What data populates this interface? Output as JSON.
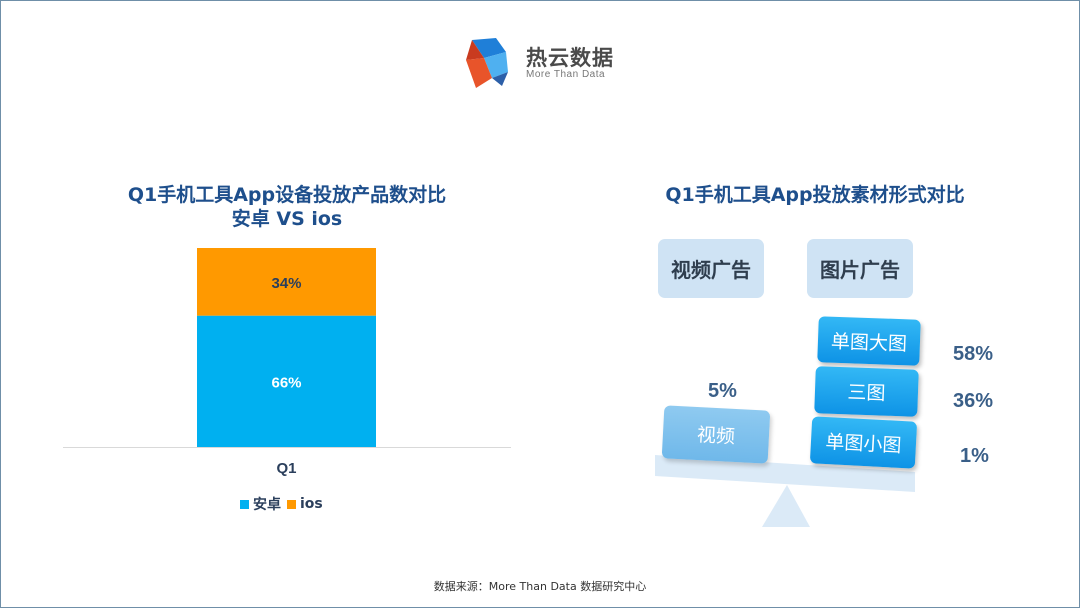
{
  "logo": {
    "name": "热云数据",
    "tagline": "More Than Data"
  },
  "left_title_line1": "Q1手机工具App设备投放产品数对比",
  "left_title_line2": "安卓 VS ios",
  "right_title": "Q1手机工具App投放素材形式对比",
  "chart_data": [
    {
      "type": "bar",
      "stacked": true,
      "title": "Q1手机工具App设备投放产品数对比 安卓 VS ios",
      "categories": [
        "Q1"
      ],
      "series": [
        {
          "name": "安卓",
          "values": [
            66
          ],
          "label": "66%",
          "color": "#00b0f0"
        },
        {
          "name": "ios",
          "values": [
            34
          ],
          "label": "34%",
          "color": "#ff9900"
        }
      ],
      "unit": "%",
      "ylim": [
        0,
        100
      ],
      "legend": "bottom",
      "grid": false
    }
  ],
  "materials": {
    "ad_types": [
      "视频广告",
      "图片广告"
    ],
    "video": {
      "label": "视频",
      "value": "5%"
    },
    "image_items": [
      {
        "label": "单图大图",
        "value": "58%"
      },
      {
        "label": "三图",
        "value": "36%"
      },
      {
        "label": "单图小图",
        "value": "1%"
      }
    ]
  },
  "footer": "数据来源：More Than Data 数据研究中心",
  "colors": {
    "title": "#1e4f8c",
    "android": "#00b0f0",
    "ios": "#ff9900",
    "box_blue": "#1aa3ec",
    "ad_box": "#cfe3f4"
  }
}
